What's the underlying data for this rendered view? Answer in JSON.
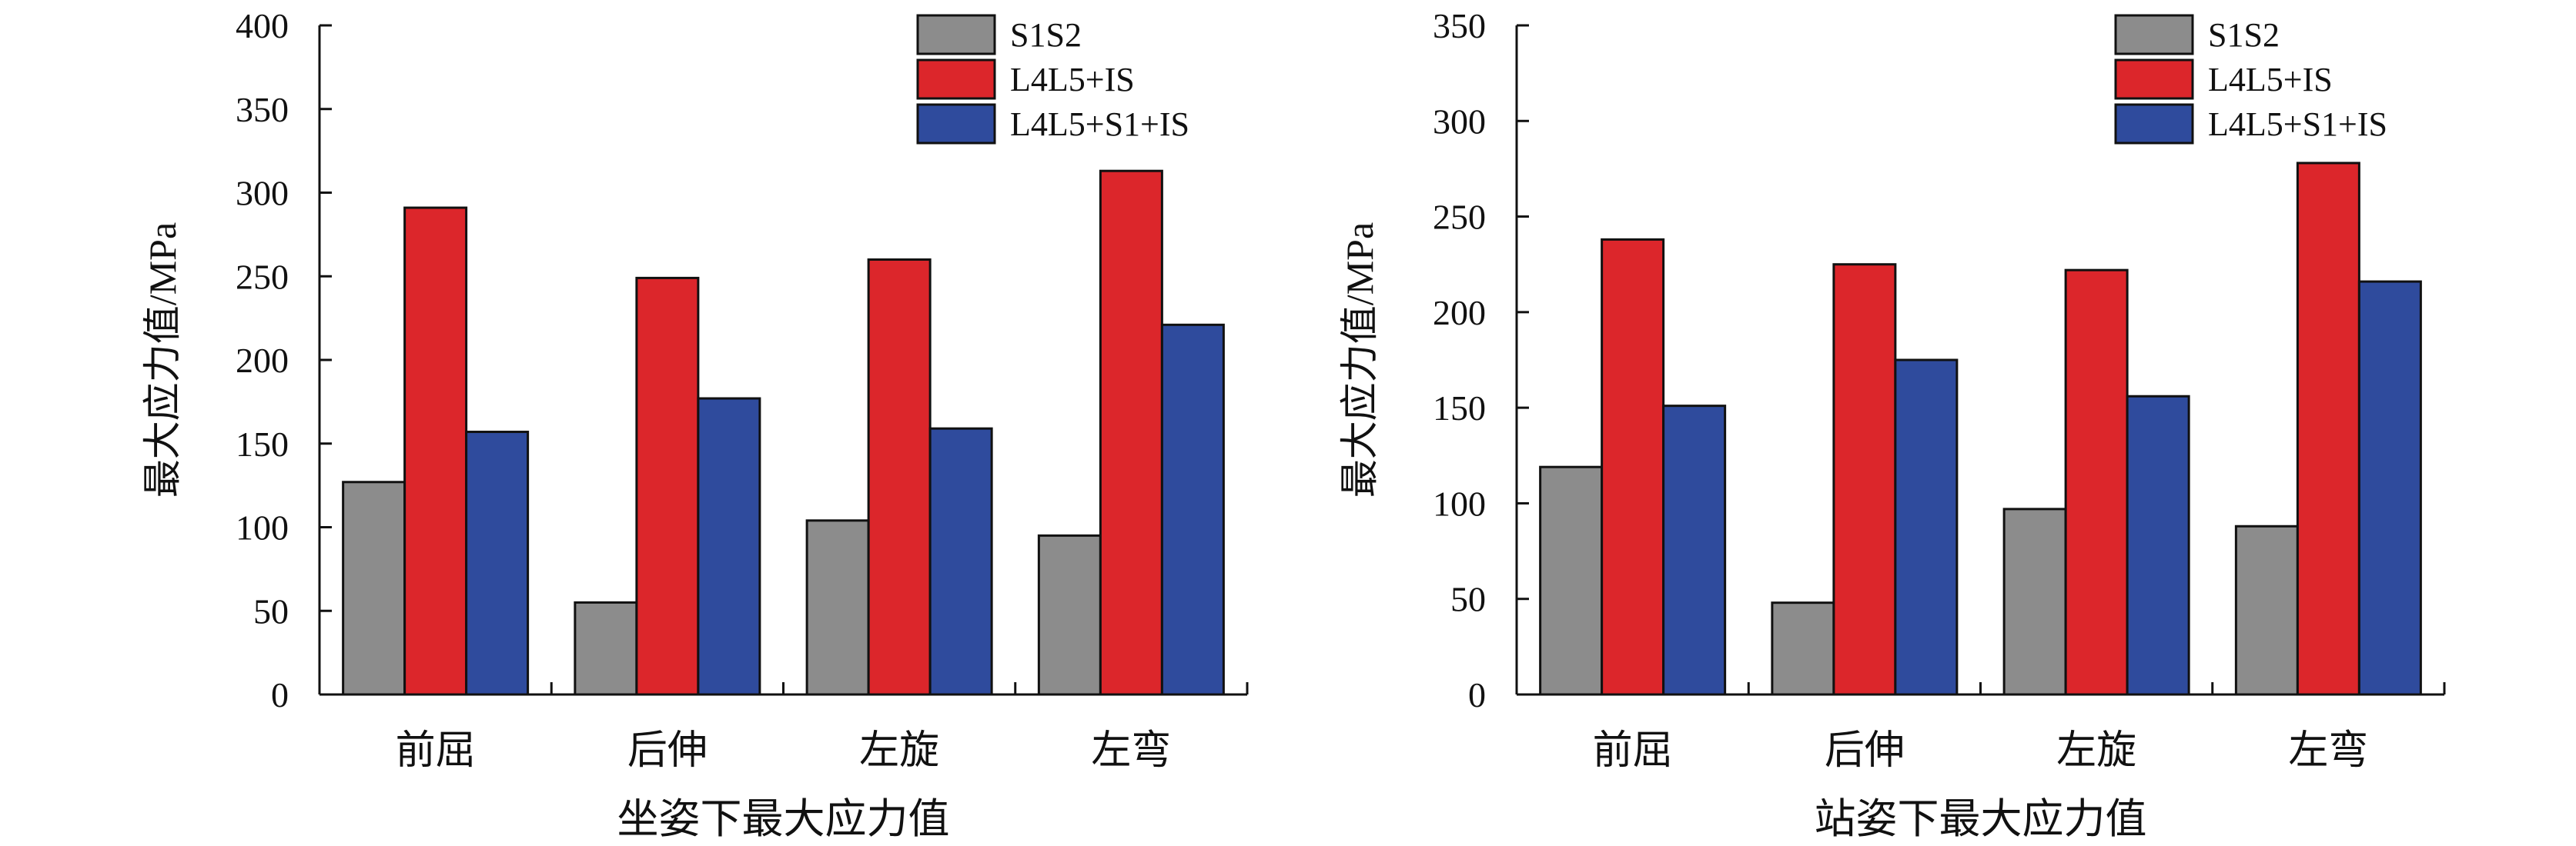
{
  "chart_data": [
    {
      "type": "bar",
      "title": "",
      "xlabel": "坐姿下最大应力值",
      "ylabel": "最大应力值/MPa",
      "ylim": [
        0,
        400
      ],
      "yticks": [
        0,
        50,
        100,
        150,
        200,
        250,
        300,
        350,
        400
      ],
      "categories": [
        "前屈",
        "后伸",
        "左旋",
        "左弯"
      ],
      "series": [
        {
          "name": "S1S2",
          "color": "#8c8c8c",
          "values": [
            127,
            55,
            104,
            95
          ]
        },
        {
          "name": "L4L5+IS",
          "color": "#dc262b",
          "values": [
            291,
            249,
            260,
            313
          ]
        },
        {
          "name": "L4L5+S1+IS",
          "color": "#2f4b9d",
          "values": [
            157,
            177,
            159,
            221
          ]
        }
      ],
      "legend": "top-right",
      "grid": false
    },
    {
      "type": "bar",
      "title": "",
      "xlabel": "站姿下最大应力值",
      "ylabel": "最大应力值/MPa",
      "ylim": [
        0,
        350
      ],
      "yticks": [
        0,
        50,
        100,
        150,
        200,
        250,
        300,
        350
      ],
      "categories": [
        "前屈",
        "后伸",
        "左旋",
        "左弯"
      ],
      "series": [
        {
          "name": "S1S2",
          "color": "#8c8c8c",
          "values": [
            119,
            48,
            97,
            88
          ]
        },
        {
          "name": "L4L5+IS",
          "color": "#dc262b",
          "values": [
            238,
            225,
            222,
            278
          ]
        },
        {
          "name": "L4L5+S1+IS",
          "color": "#2f4b9d",
          "values": [
            151,
            175,
            156,
            216
          ]
        }
      ],
      "legend": "top-right",
      "grid": false
    }
  ]
}
